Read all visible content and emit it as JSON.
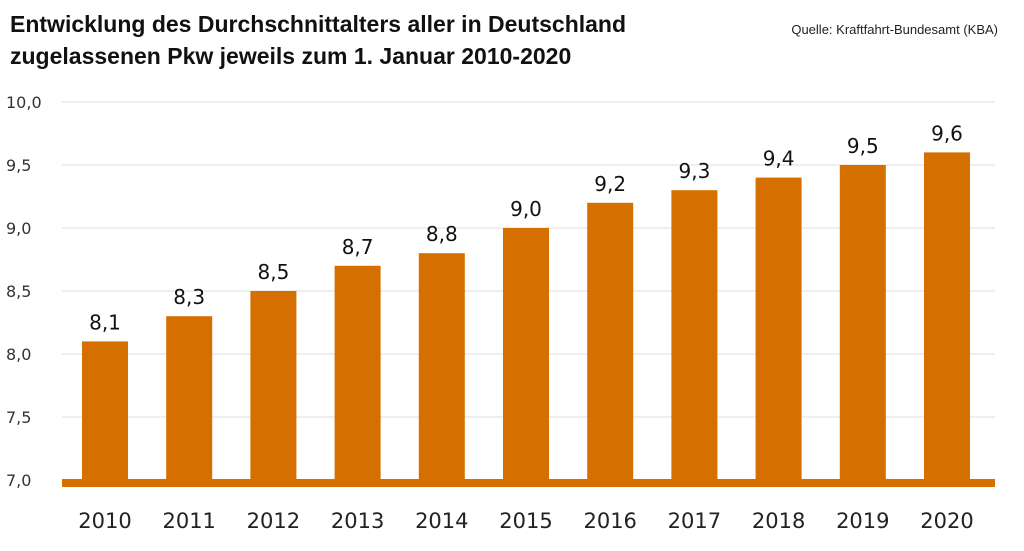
{
  "title_line1": "Entwicklung des Durchschnittalters aller in Deutschland",
  "title_line2": "zugelassenen Pkw jeweils zum 1. Januar 2010-2020",
  "source": "Quelle: Kraftfahrt-Bundesamt (KBA)",
  "colors": {
    "bar": "#d56f00",
    "axis": "#d56f00",
    "grid": "#dddddd"
  },
  "chart_data": {
    "type": "bar",
    "title": "Entwicklung des Durchschnittalters aller in Deutschland zugelassenen Pkw jeweils zum 1. Januar 2010-2020",
    "categories": [
      "2010",
      "2011",
      "2012",
      "2013",
      "2014",
      "2015",
      "2016",
      "2017",
      "2018",
      "2019",
      "2020"
    ],
    "values": [
      8.1,
      8.3,
      8.5,
      8.7,
      8.8,
      9.0,
      9.2,
      9.3,
      9.4,
      9.5,
      9.6
    ],
    "data_labels": [
      "8,1",
      "8,3",
      "8,5",
      "8,7",
      "8,8",
      "9,0",
      "9,2",
      "9,3",
      "9,4",
      "9,5",
      "9,6"
    ],
    "yticks": [
      7.0,
      7.5,
      8.0,
      8.5,
      9.0,
      9.5,
      10.0
    ],
    "ytick_labels": [
      "7,0",
      "7,5",
      "8,0",
      "8,5",
      "9,0",
      "9,5",
      "10,0"
    ],
    "ylim": [
      7.0,
      10.0
    ],
    "xlabel": "",
    "ylabel": "",
    "grid": true,
    "legend": "none"
  }
}
